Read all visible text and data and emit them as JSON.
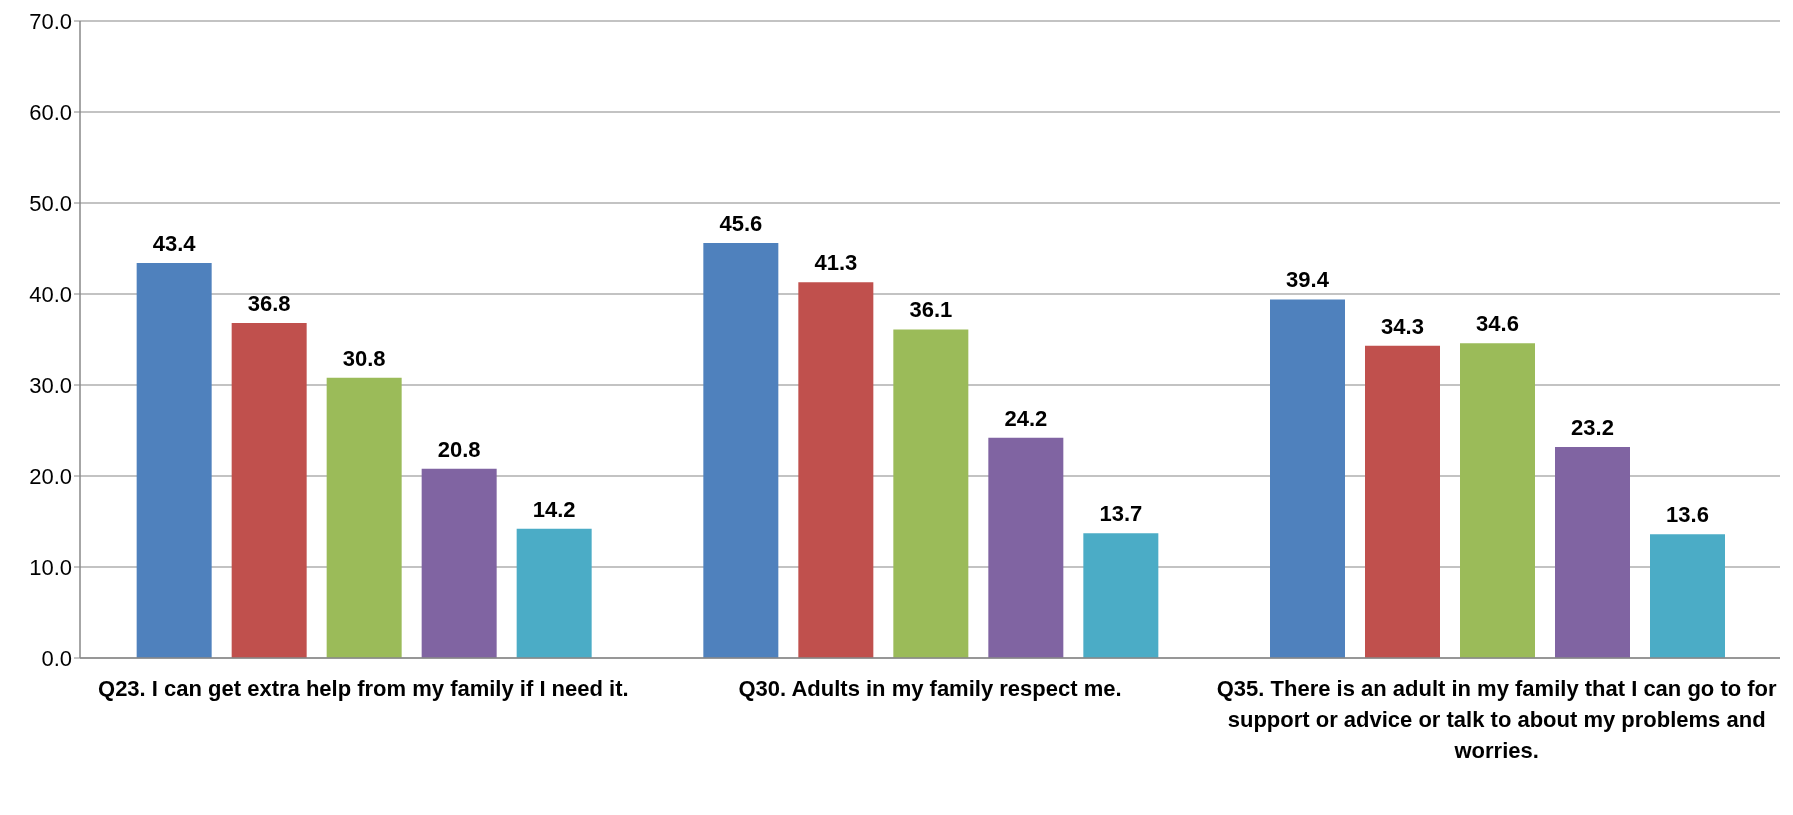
{
  "chart_data": {
    "type": "bar",
    "categories": [
      "Q23. I can get extra help from my family if I need it.",
      "Q30. Adults in my family respect me.",
      "Q35. There is an adult in my family that I can go to for support or advice or talk to about my problems and worries."
    ],
    "series": [
      {
        "color": "#4f81bd",
        "values": [
          43.4,
          45.6,
          39.4
        ]
      },
      {
        "color": "#c0504d",
        "values": [
          36.8,
          41.3,
          34.3
        ]
      },
      {
        "color": "#9bbb59",
        "values": [
          30.8,
          36.1,
          34.6
        ]
      },
      {
        "color": "#8064a2",
        "values": [
          20.8,
          24.2,
          23.2
        ]
      },
      {
        "color": "#4bacc6",
        "values": [
          14.2,
          13.7,
          13.6
        ]
      }
    ],
    "ylim": [
      0,
      70
    ],
    "yticks": [
      {
        "value": 0,
        "label": "0.0"
      },
      {
        "value": 10,
        "label": "10.0"
      },
      {
        "value": 20,
        "label": "20.0"
      },
      {
        "value": 30,
        "label": "30.0"
      },
      {
        "value": 40,
        "label": "40.0"
      },
      {
        "value": 50,
        "label": "50.0"
      },
      {
        "value": 60,
        "label": "60.0"
      },
      {
        "value": 70,
        "label": "70.0"
      }
    ],
    "grid": "y",
    "legend": false,
    "data_labels": true
  }
}
